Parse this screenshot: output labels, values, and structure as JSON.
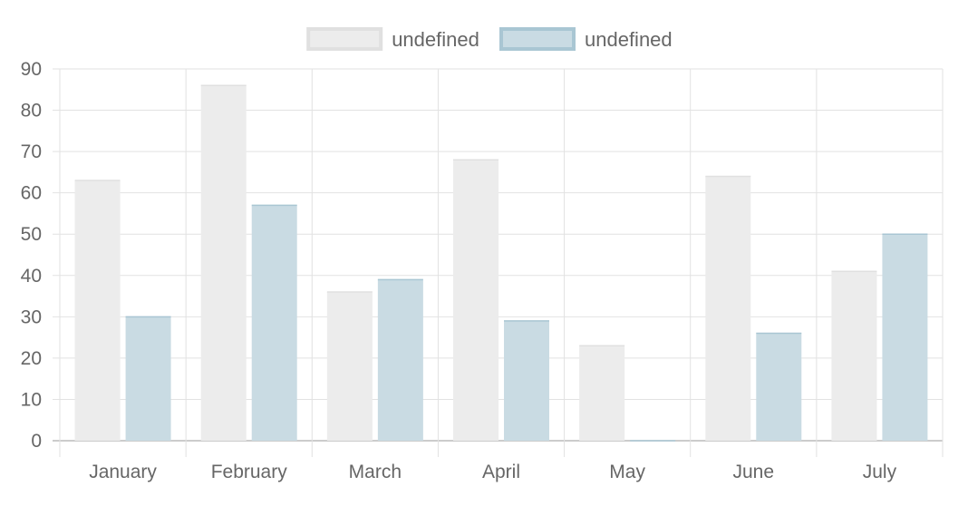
{
  "chart_data": {
    "type": "bar",
    "categories": [
      "January",
      "February",
      "March",
      "April",
      "May",
      "June",
      "July"
    ],
    "series": [
      {
        "name": "undefined",
        "values": [
          63,
          86,
          36,
          68,
          23,
          64,
          41
        ]
      },
      {
        "name": "undefined",
        "values": [
          30,
          57,
          39,
          29,
          0,
          26,
          50
        ]
      }
    ],
    "ylim": [
      0,
      90
    ],
    "yticks": [
      0,
      10,
      20,
      30,
      40,
      50,
      60,
      70,
      80,
      90
    ],
    "grid": true,
    "legend_position": "top-center",
    "colors": {
      "series_fill": [
        "#ececec",
        "#c9dbe3"
      ],
      "series_border": [
        "#e0e0e0",
        "#a9c6d3"
      ],
      "grid": "#e2e2e2",
      "axis": "#bbbbbb",
      "text": "#666666"
    }
  }
}
